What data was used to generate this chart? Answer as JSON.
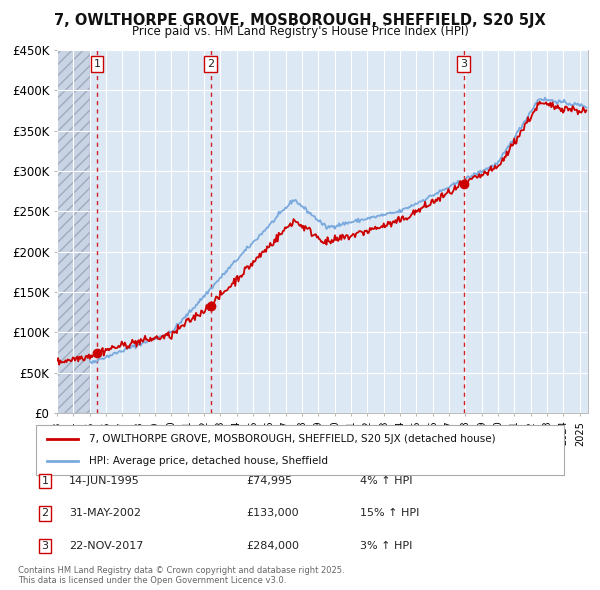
{
  "title": "7, OWLTHORPE GROVE, MOSBOROUGH, SHEFFIELD, S20 5JX",
  "subtitle": "Price paid vs. HM Land Registry's House Price Index (HPI)",
  "legend_property": "7, OWLTHORPE GROVE, MOSBOROUGH, SHEFFIELD, S20 5JX (detached house)",
  "legend_hpi": "HPI: Average price, detached house, Sheffield",
  "footer": "Contains HM Land Registry data © Crown copyright and database right 2025.\nThis data is licensed under the Open Government Licence v3.0.",
  "sales": [
    {
      "num": 1,
      "date": "14-JUN-1995",
      "price": 74995,
      "year": 1995.45,
      "pct": "4%",
      "dir": "↑"
    },
    {
      "num": 2,
      "date": "31-MAY-2002",
      "price": 133000,
      "year": 2002.41,
      "pct": "15%",
      "dir": "↑"
    },
    {
      "num": 3,
      "date": "22-NOV-2017",
      "price": 284000,
      "year": 2017.89,
      "pct": "3%",
      "dir": "↑"
    }
  ],
  "hatch_end_year": 1995.0,
  "xlim": [
    1993.0,
    2025.5
  ],
  "ylim": [
    0,
    450000
  ],
  "yticks": [
    0,
    50000,
    100000,
    150000,
    200000,
    250000,
    300000,
    350000,
    400000,
    450000
  ],
  "ytick_labels": [
    "£0",
    "£50K",
    "£100K",
    "£150K",
    "£200K",
    "£250K",
    "£300K",
    "£350K",
    "£400K",
    "£450K"
  ],
  "property_color": "#cc0000",
  "hpi_color": "#7aaadd",
  "bg_color": "#dde8f5",
  "hatch_color": "#c8d4e4",
  "grid_color": "#ffffff",
  "marker_color": "#cc0000",
  "dashed_line_color": "#cc0000"
}
